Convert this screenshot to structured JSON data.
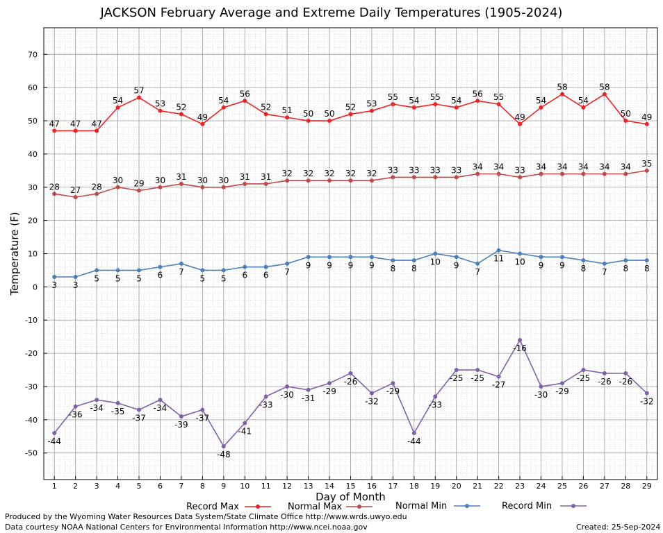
{
  "chart_data": {
    "type": "line",
    "title": "JACKSON February Average and Extreme Daily Temperatures (1905-2024)",
    "xlabel": "Day of Month",
    "ylabel": "Temperature (F)",
    "x": [
      1,
      2,
      3,
      4,
      5,
      6,
      7,
      8,
      9,
      10,
      11,
      12,
      13,
      14,
      15,
      16,
      17,
      18,
      19,
      20,
      21,
      22,
      23,
      24,
      25,
      26,
      27,
      28,
      29
    ],
    "xlim": [
      0.5,
      29.5
    ],
    "ylim": [
      -58,
      78
    ],
    "yticks": [
      -50,
      -40,
      -30,
      -20,
      -10,
      0,
      10,
      20,
      30,
      40,
      50,
      60,
      70
    ],
    "grid": true,
    "legend_position": "bottom",
    "series": [
      {
        "name": "Record Max",
        "color": "#ee2222",
        "values": [
          47,
          47,
          47,
          54,
          57,
          53,
          52,
          49,
          54,
          56,
          52,
          51,
          50,
          50,
          52,
          53,
          55,
          54,
          55,
          54,
          56,
          55,
          49,
          54,
          58,
          54,
          58,
          50,
          49
        ]
      },
      {
        "name": "Normal Max",
        "color": "#c04848",
        "values": [
          28,
          27,
          28,
          30,
          29,
          30,
          31,
          30,
          30,
          31,
          31,
          32,
          32,
          32,
          32,
          32,
          33,
          33,
          33,
          33,
          34,
          34,
          33,
          34,
          34,
          34,
          34,
          34,
          35
        ]
      },
      {
        "name": "Normal Min",
        "color": "#4a7fba",
        "values": [
          3,
          3,
          5,
          5,
          5,
          6,
          7,
          5,
          5,
          6,
          6,
          7,
          9,
          9,
          9,
          9,
          8,
          8,
          10,
          9,
          7,
          11,
          10,
          9,
          9,
          8,
          7,
          8,
          8
        ]
      },
      {
        "name": "Record Min",
        "color": "#8060a8",
        "values": [
          -44,
          -36,
          -34,
          -35,
          -37,
          -34,
          -39,
          -37,
          -48,
          -41,
          -33,
          -30,
          -31,
          -29,
          -26,
          -32,
          -29,
          -44,
          -33,
          -25,
          -25,
          -27,
          -16,
          -30,
          -29,
          -25,
          -26,
          -26,
          -32
        ]
      }
    ]
  },
  "footer": {
    "produced_by": "Produced by the Wyoming Water Resources Data System/State Climate Office http://www.wrds.uwyo.edu",
    "courtesy": "Data courtesy NOAA National Centers for Environmental Information http://www.ncei.noaa.gov",
    "created": "Created:  25-Sep-2024"
  }
}
